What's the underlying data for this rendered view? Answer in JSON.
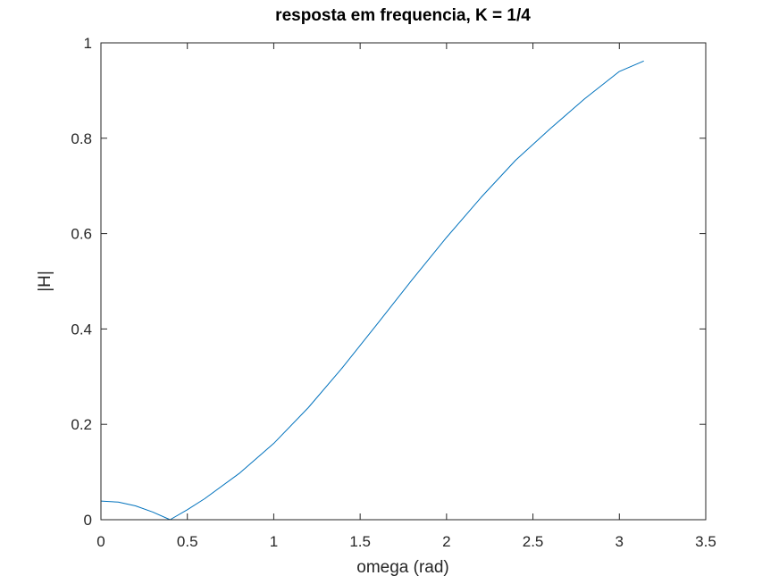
{
  "chart_data": {
    "type": "line",
    "title": "resposta em frequencia, K = 1/4",
    "xlabel": "omega (rad)",
    "ylabel": "|H|",
    "xlim": [
      0,
      3.5
    ],
    "ylim": [
      0,
      1
    ],
    "xticks": [
      0,
      0.5,
      1,
      1.5,
      2,
      2.5,
      3,
      3.5
    ],
    "xtick_labels": [
      "0",
      "0.5",
      "1",
      "1.5",
      "2",
      "2.5",
      "3",
      "3.5"
    ],
    "yticks": [
      0,
      0.2,
      0.4,
      0.6,
      0.8,
      1
    ],
    "ytick_labels": [
      "0",
      "0.2",
      "0.4",
      "0.6",
      "0.8",
      "1"
    ],
    "grid": false,
    "series": [
      {
        "color": "#0072bd",
        "x": [
          0,
          0.1,
          0.2,
          0.3,
          0.4,
          0.5,
          0.6,
          0.8,
          1.0,
          1.2,
          1.4,
          1.6,
          1.8,
          2.0,
          2.2,
          2.4,
          2.6,
          2.8,
          3.0,
          3.1416
        ],
        "y": [
          0.039,
          0.037,
          0.029,
          0.016,
          0.0,
          0.021,
          0.044,
          0.097,
          0.16,
          0.235,
          0.32,
          0.411,
          0.503,
          0.592,
          0.676,
          0.754,
          0.82,
          0.883,
          0.94,
          0.962
        ]
      }
    ]
  }
}
